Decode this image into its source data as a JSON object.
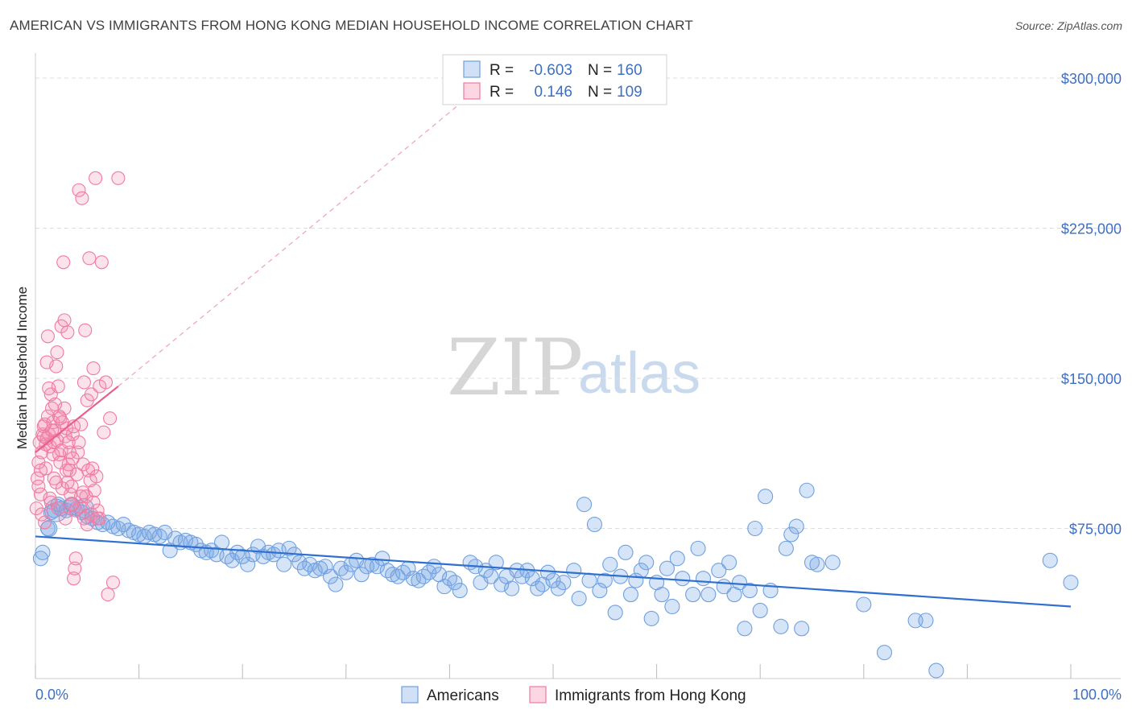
{
  "title": "AMERICAN VS IMMIGRANTS FROM HONG KONG MEDIAN HOUSEHOLD INCOME CORRELATION CHART",
  "source": "Source: ZipAtlas.com",
  "watermark": {
    "zip": "ZIP",
    "atlas": "atlas"
  },
  "colors": {
    "blue": "#6fa0e0",
    "blue_fill": "rgba(120,165,230,0.30)",
    "blue_line": "#2f6fcf",
    "pink": "#f07aa0",
    "pink_fill": "rgba(245,140,175,0.25)",
    "pink_line": "#e8608c",
    "grid": "#dddddd",
    "axis_text": "#3d6fc4"
  },
  "legend": {
    "r_label": "R =",
    "n_label": "N =",
    "series": [
      {
        "name": "Americans",
        "r": "-0.603",
        "n": "160"
      },
      {
        "name": "Immigrants from Hong Kong",
        "r": "0.146",
        "n": "109"
      }
    ]
  },
  "chart_data": {
    "type": "scatter",
    "title": "AMERICAN VS IMMIGRANTS FROM HONG KONG MEDIAN HOUSEHOLD INCOME CORRELATION CHART",
    "xlabel": "",
    "ylabel": "Median Household Income",
    "xlim": [
      0,
      100
    ],
    "ylim": [
      0,
      310000
    ],
    "x_tick_labels": [
      "0.0%",
      "100.0%"
    ],
    "y_ticks": [
      75000,
      150000,
      225000,
      300000
    ],
    "y_tick_labels": [
      "$75,000",
      "$150,000",
      "$225,000",
      "$300,000"
    ],
    "grid": true,
    "legend_position": "top-center",
    "series": [
      {
        "name": "Americans",
        "color": "#6fa0e0",
        "trend": {
          "x": [
            0,
            100
          ],
          "y": [
            71000,
            36000
          ]
        },
        "points": [
          [
            0.5,
            60000
          ],
          [
            0.7,
            63000
          ],
          [
            1.2,
            75000
          ],
          [
            1.5,
            83000
          ],
          [
            1.8,
            84000
          ],
          [
            2.2,
            87000
          ],
          [
            2.5,
            85000
          ],
          [
            3,
            84000
          ],
          [
            3.5,
            87000
          ],
          [
            4,
            85000
          ],
          [
            4.5,
            83000
          ],
          [
            5,
            81000
          ],
          [
            5.5,
            80000
          ],
          [
            6,
            78000
          ],
          [
            6.5,
            77000
          ],
          [
            7,
            78000
          ],
          [
            7.5,
            76000
          ],
          [
            8,
            75000
          ],
          [
            8.5,
            77000
          ],
          [
            9,
            74000
          ],
          [
            9.5,
            73000
          ],
          [
            10,
            72000
          ],
          [
            10.5,
            71000
          ],
          [
            11,
            73000
          ],
          [
            11.5,
            72000
          ],
          [
            12,
            71000
          ],
          [
            12.5,
            73000
          ],
          [
            13,
            64000
          ],
          [
            13.5,
            70000
          ],
          [
            14,
            68000
          ],
          [
            14.5,
            69000
          ],
          [
            15,
            68000
          ],
          [
            15.5,
            67000
          ],
          [
            16,
            64000
          ],
          [
            16.5,
            63000
          ],
          [
            17,
            64000
          ],
          [
            17.5,
            62000
          ],
          [
            18,
            68000
          ],
          [
            18.5,
            61000
          ],
          [
            19,
            59000
          ],
          [
            19.5,
            63000
          ],
          [
            20,
            61000
          ],
          [
            20.5,
            57000
          ],
          [
            21,
            62000
          ],
          [
            21.5,
            66000
          ],
          [
            22,
            61000
          ],
          [
            22.5,
            63000
          ],
          [
            23,
            62000
          ],
          [
            23.5,
            64000
          ],
          [
            24,
            57000
          ],
          [
            24.5,
            65000
          ],
          [
            25,
            62000
          ],
          [
            25.5,
            58000
          ],
          [
            26,
            55000
          ],
          [
            26.5,
            57000
          ],
          [
            27,
            54000
          ],
          [
            27.5,
            55000
          ],
          [
            28,
            56000
          ],
          [
            28.5,
            51000
          ],
          [
            29,
            47000
          ],
          [
            29.5,
            55000
          ],
          [
            30,
            53000
          ],
          [
            30.5,
            57000
          ],
          [
            31,
            59000
          ],
          [
            31.5,
            52000
          ],
          [
            32,
            56000
          ],
          [
            32.5,
            57000
          ],
          [
            33,
            56000
          ],
          [
            33.5,
            60000
          ],
          [
            34,
            54000
          ],
          [
            34.5,
            52000
          ],
          [
            35,
            51000
          ],
          [
            35.5,
            53000
          ],
          [
            36,
            55000
          ],
          [
            36.5,
            50000
          ],
          [
            37,
            49000
          ],
          [
            37.5,
            51000
          ],
          [
            38,
            53000
          ],
          [
            38.5,
            56000
          ],
          [
            39,
            52000
          ],
          [
            39.5,
            46000
          ],
          [
            40,
            50000
          ],
          [
            40.5,
            48000
          ],
          [
            41,
            44000
          ],
          [
            42,
            58000
          ],
          [
            42.5,
            56000
          ],
          [
            43,
            48000
          ],
          [
            43.5,
            54000
          ],
          [
            44,
            51000
          ],
          [
            44.5,
            58000
          ],
          [
            45,
            47000
          ],
          [
            45.5,
            51000
          ],
          [
            46,
            45000
          ],
          [
            46.5,
            54000
          ],
          [
            47,
            51000
          ],
          [
            47.5,
            54000
          ],
          [
            48,
            50000
          ],
          [
            48.5,
            45000
          ],
          [
            49,
            47000
          ],
          [
            49.5,
            53000
          ],
          [
            50,
            49000
          ],
          [
            50.5,
            45000
          ],
          [
            51,
            48000
          ],
          [
            52,
            54000
          ],
          [
            52.5,
            40000
          ],
          [
            53,
            87000
          ],
          [
            53.5,
            49000
          ],
          [
            54,
            77000
          ],
          [
            54.5,
            44000
          ],
          [
            55,
            49000
          ],
          [
            55.5,
            57000
          ],
          [
            56,
            33000
          ],
          [
            56.5,
            51000
          ],
          [
            57,
            63000
          ],
          [
            57.5,
            42000
          ],
          [
            58,
            49000
          ],
          [
            58.5,
            54000
          ],
          [
            59,
            58000
          ],
          [
            59.5,
            30000
          ],
          [
            60,
            48000
          ],
          [
            60.5,
            42000
          ],
          [
            61,
            55000
          ],
          [
            61.5,
            36000
          ],
          [
            62,
            60000
          ],
          [
            62.5,
            50000
          ],
          [
            63.5,
            42000
          ],
          [
            64,
            65000
          ],
          [
            64.5,
            50000
          ],
          [
            65,
            42000
          ],
          [
            66,
            54000
          ],
          [
            66.5,
            46000
          ],
          [
            67,
            58000
          ],
          [
            67.5,
            42000
          ],
          [
            68,
            48000
          ],
          [
            68.5,
            25000
          ],
          [
            69,
            44000
          ],
          [
            69.5,
            75000
          ],
          [
            70,
            34000
          ],
          [
            70.5,
            91000
          ],
          [
            71,
            44000
          ],
          [
            72,
            26000
          ],
          [
            72.5,
            65000
          ],
          [
            73,
            72000
          ],
          [
            73.5,
            76000
          ],
          [
            74,
            25000
          ],
          [
            74.5,
            94000
          ],
          [
            75,
            58000
          ],
          [
            75.5,
            57000
          ],
          [
            77,
            58000
          ],
          [
            80,
            37000
          ],
          [
            82,
            13000
          ],
          [
            85,
            29000
          ],
          [
            86,
            29000
          ],
          [
            87,
            4000
          ],
          [
            98,
            59000
          ],
          [
            100,
            48000
          ]
        ]
      },
      {
        "name": "Immigrants from Hong Kong",
        "color": "#f07aa0",
        "trend": {
          "x": [
            0,
            8
          ],
          "y": [
            113000,
            146000
          ]
        },
        "trend_extension": {
          "x": [
            8,
            44
          ],
          "y": [
            146000,
            300000
          ]
        },
        "points": [
          [
            0.1,
            85000
          ],
          [
            0.2,
            100000
          ],
          [
            0.3,
            108000
          ],
          [
            0.4,
            118000
          ],
          [
            0.5,
            92000
          ],
          [
            0.6,
            113000
          ],
          [
            0.7,
            122000
          ],
          [
            0.8,
            126000
          ],
          [
            0.9,
            127000
          ],
          [
            1,
            117000
          ],
          [
            1.1,
            158000
          ],
          [
            1.2,
            171000
          ],
          [
            1.3,
            122000
          ],
          [
            1.4,
            116000
          ],
          [
            1.5,
            142000
          ],
          [
            1.6,
            135000
          ],
          [
            1.7,
            128000
          ],
          [
            1.8,
            118000
          ],
          [
            1.9,
            124000
          ],
          [
            2,
            156000
          ],
          [
            2.1,
            163000
          ],
          [
            2.2,
            146000
          ],
          [
            2.3,
            112000
          ],
          [
            2.4,
            130000
          ],
          [
            2.5,
            176000
          ],
          [
            2.6,
            128000
          ],
          [
            2.7,
            208000
          ],
          [
            2.8,
            179000
          ],
          [
            2.9,
            121000
          ],
          [
            3,
            104000
          ],
          [
            3.1,
            173000
          ],
          [
            3.2,
            107000
          ],
          [
            3.3,
            113000
          ],
          [
            3.4,
            92000
          ],
          [
            3.5,
            96000
          ],
          [
            3.6,
            122000
          ],
          [
            3.7,
            50000
          ],
          [
            3.8,
            55000
          ],
          [
            3.9,
            60000
          ],
          [
            4,
            102000
          ],
          [
            4.1,
            113000
          ],
          [
            4.2,
            244000
          ],
          [
            4.3,
            86000
          ],
          [
            4.4,
            91000
          ],
          [
            4.5,
            240000
          ],
          [
            4.6,
            107000
          ],
          [
            4.7,
            148000
          ],
          [
            4.8,
            174000
          ],
          [
            4.9,
            91000
          ],
          [
            5,
            139000
          ],
          [
            5.1,
            104000
          ],
          [
            5.2,
            210000
          ],
          [
            5.3,
            99000
          ],
          [
            5.4,
            142000
          ],
          [
            5.5,
            105000
          ],
          [
            5.6,
            155000
          ],
          [
            5.7,
            94000
          ],
          [
            5.8,
            250000
          ],
          [
            5.9,
            101000
          ],
          [
            6,
            80000
          ],
          [
            6.2,
            146000
          ],
          [
            6.4,
            208000
          ],
          [
            6.6,
            123000
          ],
          [
            6.8,
            148000
          ],
          [
            7,
            42000
          ],
          [
            7.2,
            130000
          ],
          [
            7.5,
            48000
          ],
          [
            8,
            250000
          ],
          [
            1.5,
            88000
          ],
          [
            2.2,
            85000
          ],
          [
            1,
            105000
          ],
          [
            1.8,
            100000
          ],
          [
            2.6,
            95000
          ],
          [
            3,
            125000
          ],
          [
            2.1,
            119000
          ],
          [
            3.6,
            110000
          ],
          [
            1.3,
            145000
          ],
          [
            2.8,
            135000
          ],
          [
            0.9,
            78000
          ],
          [
            4.4,
            127000
          ],
          [
            3.9,
            84000
          ],
          [
            1.7,
            112000
          ],
          [
            2.3,
            131000
          ],
          [
            3.2,
            118000
          ],
          [
            0.5,
            104000
          ],
          [
            5,
            77000
          ],
          [
            4.2,
            118000
          ],
          [
            2,
            98000
          ],
          [
            3.5,
            87000
          ],
          [
            1.2,
            131000
          ],
          [
            0.3,
            96000
          ],
          [
            4.7,
            80000
          ],
          [
            3.3,
            104000
          ],
          [
            1.9,
            137000
          ],
          [
            2.5,
            114000
          ],
          [
            0.8,
            121000
          ],
          [
            5.4,
            82000
          ],
          [
            6.2,
            80000
          ],
          [
            1.4,
            90000
          ],
          [
            2.9,
            80000
          ],
          [
            3.7,
            126000
          ],
          [
            0.6,
            82000
          ],
          [
            4.6,
            93000
          ],
          [
            5.6,
            88000
          ],
          [
            2.4,
            108000
          ],
          [
            1.1,
            120000
          ],
          [
            3.1,
            98000
          ],
          [
            6,
            84000
          ],
          [
            1.6,
            124000
          ]
        ]
      }
    ]
  }
}
